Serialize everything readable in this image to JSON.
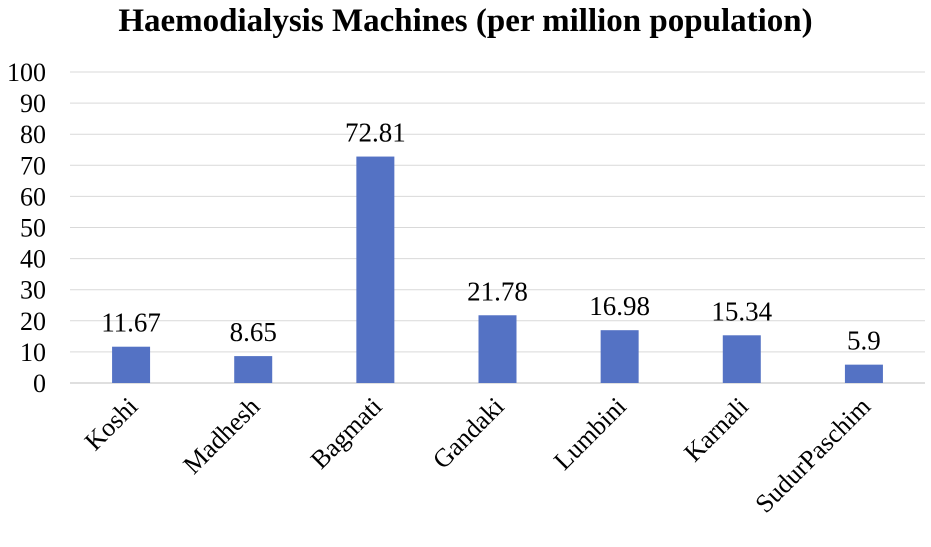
{
  "chart_data": {
    "type": "bar",
    "title": "Haemodialysis Machines (per million population)",
    "categories": [
      "Koshi",
      "Madhesh",
      "Bagmati",
      "Gandaki",
      "Lumbini",
      "Karnali",
      "SudurPaschim"
    ],
    "values": [
      11.67,
      8.65,
      72.81,
      21.78,
      16.98,
      15.34,
      5.9
    ],
    "data_labels": [
      "11.67",
      "8.65",
      "72.81",
      "21.78",
      "16.98",
      "15.34",
      "5.9"
    ],
    "ylim": [
      0,
      100
    ],
    "yticks": [
      0,
      10,
      20,
      30,
      40,
      50,
      60,
      70,
      80,
      90,
      100
    ],
    "grid": true,
    "legend": "none",
    "bar_color": "#5472C4",
    "grid_color": "#D9D9D9",
    "axis_color": "#BFBFBF"
  }
}
